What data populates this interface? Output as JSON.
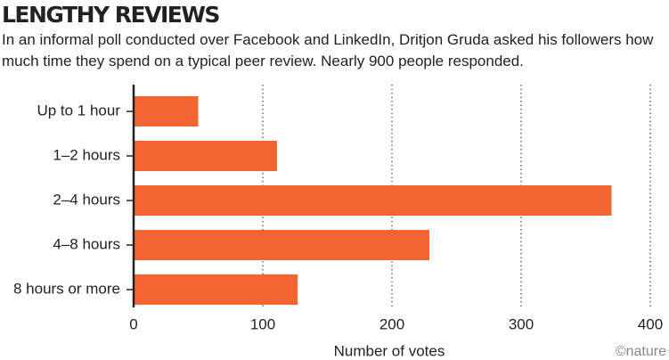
{
  "chart_data": {
    "type": "bar",
    "orientation": "horizontal",
    "title": "LENGTHY REVIEWS",
    "subtitle": "In an informal poll conducted over Facebook and LinkedIn, Dritjon Gruda asked his followers how much time they spend on a typical peer review. Nearly 900 people responded.",
    "categories": [
      "Up to 1 hour",
      "1–2 hours",
      "2–4 hours",
      "4–8 hours",
      "8 hours or more"
    ],
    "values": [
      50,
      111,
      370,
      229,
      127
    ],
    "color": "#f26430",
    "xlabel": "Number of votes",
    "xlim": [
      0,
      400
    ],
    "xticks": [
      0,
      100,
      200,
      300,
      400
    ],
    "grid": true,
    "source": "©nature"
  }
}
